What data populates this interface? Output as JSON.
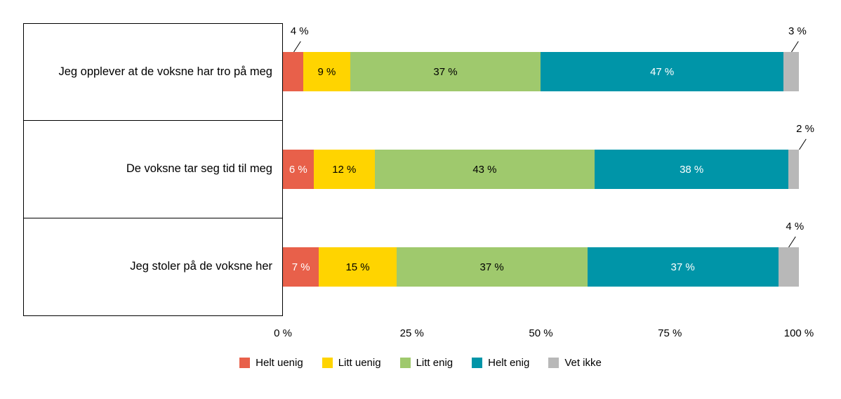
{
  "chart_data": {
    "type": "bar",
    "stacked": true,
    "orientation": "horizontal",
    "title": "",
    "categories": [
      "Jeg opplever at de voksne har tro på meg",
      "De voksne tar seg tid til meg",
      "Jeg stoler på de voksne her"
    ],
    "series": [
      {
        "name": "Helt uenig",
        "color": "#e8604a",
        "label_color": "#ffffff",
        "values": [
          4,
          6,
          7
        ]
      },
      {
        "name": "Litt uenig",
        "color": "#ffd400",
        "label_color": "#000000",
        "values": [
          9,
          12,
          15
        ]
      },
      {
        "name": "Litt enig",
        "color": "#9fc96d",
        "label_color": "#000000",
        "values": [
          37,
          43,
          37
        ]
      },
      {
        "name": "Helt enig",
        "color": "#0095a8",
        "label_color": "#ffffff",
        "values": [
          47,
          38,
          37
        ]
      },
      {
        "name": "Vet ikke",
        "color": "#b8b8b8",
        "label_color": "#000000",
        "values": [
          3,
          2,
          4
        ]
      }
    ],
    "callouts": [
      [
        0,
        4
      ],
      [
        4
      ],
      [
        4
      ]
    ],
    "x_ticks": [
      "0 %",
      "25 %",
      "50 %",
      "75 %",
      "100 %"
    ],
    "xlim": [
      0,
      100
    ],
    "label_format": "{v} %",
    "legend_position": "bottom",
    "grid": false,
    "leader_line_color": "#000000",
    "category_box_border_color": "#000000"
  }
}
